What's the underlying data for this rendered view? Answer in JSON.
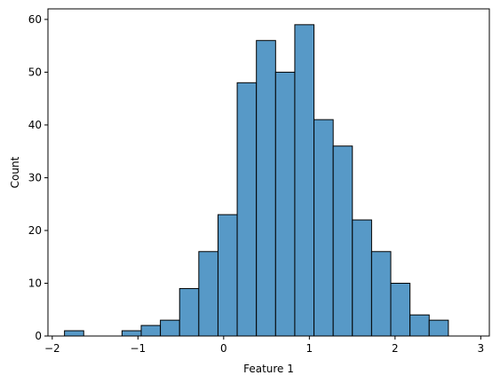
{
  "chart_data": {
    "type": "bar",
    "title": "",
    "xlabel": "Feature 1",
    "ylabel": "Count",
    "xlim": [
      -2.05,
      3.1
    ],
    "ylim": [
      0,
      62
    ],
    "grid": false,
    "legend": "none",
    "bar_color": "#5799c7",
    "edge_color": "#000000",
    "x_ticks": [
      -2,
      -1,
      0,
      1,
      2,
      3
    ],
    "x_tick_labels": [
      "−2",
      "−1",
      "0",
      "1",
      "2",
      "3"
    ],
    "y_ticks": [
      0,
      10,
      20,
      30,
      40,
      50,
      60
    ],
    "y_tick_labels": [
      "0",
      "10",
      "20",
      "30",
      "40",
      "50",
      "60"
    ],
    "bin_edges": [
      -1.857,
      -1.633,
      -1.41,
      -1.186,
      -0.962,
      -0.738,
      -0.514,
      -0.29,
      -0.066,
      0.158,
      0.382,
      0.606,
      0.83,
      1.054,
      1.278,
      1.502,
      1.726,
      1.95,
      2.174,
      2.398,
      2.622,
      2.846
    ],
    "counts": [
      1,
      0,
      0,
      1,
      2,
      3,
      9,
      16,
      23,
      48,
      56,
      50,
      59,
      41,
      36,
      22,
      16,
      10,
      4,
      3,
      0
    ]
  }
}
